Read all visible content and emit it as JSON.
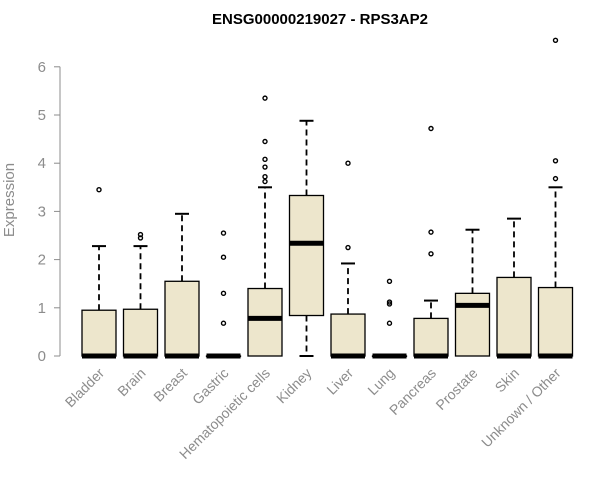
{
  "chart_data": {
    "type": "boxplot",
    "title": "ENSG00000219027 - RPS3AP2",
    "xlabel": "",
    "ylabel": "Expression",
    "ylim": [
      0,
      6.6
    ],
    "yticks": [
      0,
      1,
      2,
      3,
      4,
      5,
      6
    ],
    "box_fill": "#ede6cc",
    "categories": [
      "Bladder",
      "Brain",
      "Breast",
      "Gastric",
      "Hematopoietic cells",
      "Kidney",
      "Liver",
      "Lung",
      "Pancreas",
      "Prostate",
      "Skin",
      "Unknown / Other"
    ],
    "boxes": [
      {
        "q1": 0,
        "median": 0,
        "q3": 0.95,
        "whisker_low": 0,
        "whisker_high": 2.28,
        "outliers": [
          3.45
        ]
      },
      {
        "q1": 0,
        "median": 0,
        "q3": 0.97,
        "whisker_low": 0,
        "whisker_high": 2.28,
        "outliers": [
          2.45,
          2.52
        ]
      },
      {
        "q1": 0,
        "median": 0,
        "q3": 1.55,
        "whisker_low": 0,
        "whisker_high": 2.95,
        "outliers": []
      },
      {
        "q1": 0,
        "median": 0,
        "q3": 0,
        "whisker_low": 0,
        "whisker_high": 0,
        "outliers": [
          0.68,
          1.3,
          2.05,
          2.55
        ]
      },
      {
        "q1": 0,
        "median": 0.78,
        "q3": 1.4,
        "whisker_low": 0,
        "whisker_high": 3.5,
        "outliers": [
          3.62,
          3.72,
          3.92,
          4.08,
          4.45,
          5.35
        ]
      },
      {
        "q1": 0.84,
        "median": 2.34,
        "q3": 3.33,
        "whisker_low": 0,
        "whisker_high": 4.88,
        "outliers": []
      },
      {
        "q1": 0,
        "median": 0,
        "q3": 0.87,
        "whisker_low": 0,
        "whisker_high": 1.92,
        "outliers": [
          2.25,
          4.0
        ]
      },
      {
        "q1": 0,
        "median": 0,
        "q3": 0,
        "whisker_low": 0,
        "whisker_high": 0,
        "outliers": [
          0.68,
          1.08,
          1.12,
          1.55
        ]
      },
      {
        "q1": 0,
        "median": 0,
        "q3": 0.78,
        "whisker_low": 0,
        "whisker_high": 1.15,
        "outliers": [
          2.12,
          2.57,
          4.72
        ]
      },
      {
        "q1": 0,
        "median": 1.05,
        "q3": 1.3,
        "whisker_low": 0,
        "whisker_high": 2.62,
        "outliers": []
      },
      {
        "q1": 0,
        "median": 0,
        "q3": 1.63,
        "whisker_low": 0,
        "whisker_high": 2.85,
        "outliers": []
      },
      {
        "q1": 0,
        "median": 0,
        "q3": 1.42,
        "whisker_low": 0,
        "whisker_high": 3.5,
        "outliers": [
          3.68,
          4.05,
          6.55
        ]
      }
    ]
  }
}
